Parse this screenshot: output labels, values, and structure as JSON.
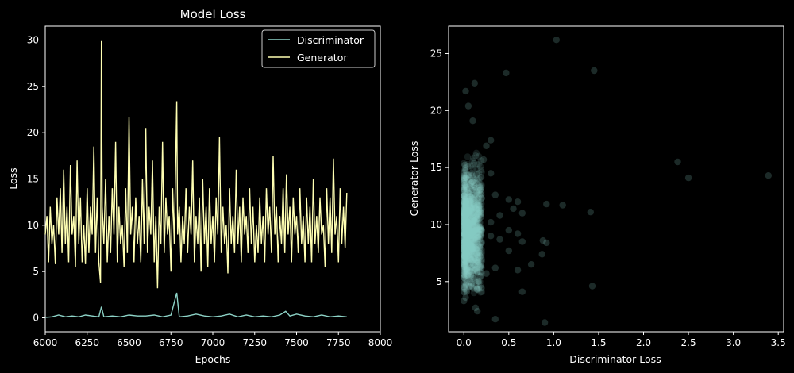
{
  "chart_data": [
    {
      "type": "line",
      "title": "Model Loss",
      "xlabel": "Epochs",
      "ylabel": "Loss",
      "xlim": [
        6000,
        8000
      ],
      "ylim": [
        -1.5,
        31.5
      ],
      "x_ticks": [
        6000,
        6250,
        6500,
        6750,
        7000,
        7250,
        7500,
        7750,
        8000
      ],
      "y_ticks": [
        0,
        5,
        10,
        15,
        20,
        25,
        30
      ],
      "legend_position": "top-right",
      "grid": false,
      "series": [
        {
          "name": "Discriminator",
          "color": "#8dd3c7",
          "points": [
            [
              6000,
              0.05
            ],
            [
              6040,
              0.1
            ],
            [
              6080,
              0.3
            ],
            [
              6120,
              0.1
            ],
            [
              6160,
              0.2
            ],
            [
              6200,
              0.1
            ],
            [
              6240,
              0.3
            ],
            [
              6280,
              0.2
            ],
            [
              6320,
              0.1
            ],
            [
              6335,
              1.2
            ],
            [
              6350,
              0.1
            ],
            [
              6400,
              0.2
            ],
            [
              6450,
              0.1
            ],
            [
              6500,
              0.3
            ],
            [
              6550,
              0.2
            ],
            [
              6600,
              0.2
            ],
            [
              6650,
              0.3
            ],
            [
              6700,
              0.1
            ],
            [
              6750,
              0.3
            ],
            [
              6785,
              2.7
            ],
            [
              6800,
              0.1
            ],
            [
              6850,
              0.2
            ],
            [
              6900,
              0.4
            ],
            [
              6950,
              0.2
            ],
            [
              7000,
              0.1
            ],
            [
              7050,
              0.2
            ],
            [
              7100,
              0.4
            ],
            [
              7150,
              0.1
            ],
            [
              7200,
              0.3
            ],
            [
              7250,
              0.1
            ],
            [
              7300,
              0.2
            ],
            [
              7350,
              0.1
            ],
            [
              7400,
              0.3
            ],
            [
              7435,
              0.7
            ],
            [
              7460,
              0.2
            ],
            [
              7500,
              0.4
            ],
            [
              7550,
              0.2
            ],
            [
              7600,
              0.1
            ],
            [
              7650,
              0.3
            ],
            [
              7700,
              0.1
            ],
            [
              7750,
              0.2
            ],
            [
              7800,
              0.1
            ]
          ]
        },
        {
          "name": "Generator",
          "color": "#ffffb3",
          "points": [
            [
              6000,
              9
            ],
            [
              6010,
              11
            ],
            [
              6020,
              6
            ],
            [
              6030,
              12
            ],
            [
              6040,
              8
            ],
            [
              6050,
              10
            ],
            [
              6060,
              5.8
            ],
            [
              6070,
              13
            ],
            [
              6080,
              9
            ],
            [
              6090,
              14
            ],
            [
              6100,
              7
            ],
            [
              6110,
              16
            ],
            [
              6120,
              8
            ],
            [
              6130,
              12
            ],
            [
              6140,
              6
            ],
            [
              6150,
              16.5
            ],
            [
              6160,
              9
            ],
            [
              6170,
              11
            ],
            [
              6180,
              5.5
            ],
            [
              6190,
              17
            ],
            [
              6200,
              8
            ],
            [
              6210,
              13
            ],
            [
              6220,
              6
            ],
            [
              6230,
              10
            ],
            [
              6240,
              5.8
            ],
            [
              6250,
              14
            ],
            [
              6260,
              7
            ],
            [
              6270,
              12
            ],
            [
              6280,
              9
            ],
            [
              6290,
              18.5
            ],
            [
              6300,
              7
            ],
            [
              6310,
              13
            ],
            [
              6320,
              6
            ],
            [
              6330,
              3.8
            ],
            [
              6335,
              29.9
            ],
            [
              6340,
              12
            ],
            [
              6350,
              8
            ],
            [
              6360,
              15
            ],
            [
              6370,
              6
            ],
            [
              6380,
              11
            ],
            [
              6390,
              7
            ],
            [
              6400,
              14
            ],
            [
              6410,
              9
            ],
            [
              6420,
              19
            ],
            [
              6430,
              6
            ],
            [
              6440,
              12
            ],
            [
              6450,
              8
            ],
            [
              6460,
              10
            ],
            [
              6470,
              5.5
            ],
            [
              6480,
              14
            ],
            [
              6490,
              7
            ],
            [
              6500,
              21.7
            ],
            [
              6510,
              9
            ],
            [
              6520,
              12
            ],
            [
              6530,
              6
            ],
            [
              6540,
              13
            ],
            [
              6550,
              8
            ],
            [
              6560,
              11
            ],
            [
              6570,
              6
            ],
            [
              6580,
              15
            ],
            [
              6590,
              8
            ],
            [
              6600,
              20.5
            ],
            [
              6610,
              7
            ],
            [
              6620,
              12
            ],
            [
              6630,
              9
            ],
            [
              6640,
              17
            ],
            [
              6650,
              6
            ],
            [
              6660,
              11
            ],
            [
              6670,
              3.2
            ],
            [
              6680,
              12
            ],
            [
              6690,
              8
            ],
            [
              6700,
              19
            ],
            [
              6710,
              7
            ],
            [
              6720,
              13
            ],
            [
              6730,
              9
            ],
            [
              6740,
              11
            ],
            [
              6750,
              5
            ],
            [
              6760,
              14
            ],
            [
              6770,
              8
            ],
            [
              6785,
              23.4
            ],
            [
              6790,
              9
            ],
            [
              6800,
              12
            ],
            [
              6810,
              6
            ],
            [
              6820,
              11
            ],
            [
              6830,
              8
            ],
            [
              6840,
              14
            ],
            [
              6850,
              7
            ],
            [
              6860,
              12
            ],
            [
              6870,
              9
            ],
            [
              6880,
              17
            ],
            [
              6890,
              6
            ],
            [
              6900,
              11
            ],
            [
              6910,
              8
            ],
            [
              6920,
              13
            ],
            [
              6930,
              5
            ],
            [
              6940,
              15
            ],
            [
              6950,
              8
            ],
            [
              6960,
              12
            ],
            [
              6970,
              5.5
            ],
            [
              6980,
              14
            ],
            [
              6990,
              8
            ],
            [
              7000,
              11
            ],
            [
              7010,
              6
            ],
            [
              7020,
              13
            ],
            [
              7030,
              9
            ],
            [
              7040,
              19.5
            ],
            [
              7050,
              7
            ],
            [
              7060,
              12
            ],
            [
              7070,
              8
            ],
            [
              7080,
              10
            ],
            [
              7090,
              4.8
            ],
            [
              7100,
              14
            ],
            [
              7110,
              8
            ],
            [
              7120,
              11
            ],
            [
              7130,
              7
            ],
            [
              7140,
              16
            ],
            [
              7150,
              8
            ],
            [
              7160,
              12
            ],
            [
              7170,
              6
            ],
            [
              7180,
              13
            ],
            [
              7190,
              9
            ],
            [
              7200,
              11
            ],
            [
              7210,
              7
            ],
            [
              7220,
              14
            ],
            [
              7230,
              8
            ],
            [
              7240,
              12
            ],
            [
              7250,
              6
            ],
            [
              7260,
              10
            ],
            [
              7270,
              7
            ],
            [
              7280,
              13
            ],
            [
              7290,
              8
            ],
            [
              7300,
              11
            ],
            [
              7310,
              6
            ],
            [
              7320,
              14
            ],
            [
              7330,
              9
            ],
            [
              7340,
              12
            ],
            [
              7350,
              7
            ],
            [
              7360,
              17.5
            ],
            [
              7370,
              9
            ],
            [
              7380,
              12
            ],
            [
              7390,
              6
            ],
            [
              7400,
              11
            ],
            [
              7410,
              8
            ],
            [
              7420,
              14
            ],
            [
              7430,
              7
            ],
            [
              7440,
              15.5
            ],
            [
              7450,
              9
            ],
            [
              7460,
              12
            ],
            [
              7470,
              6
            ],
            [
              7480,
              13
            ],
            [
              7490,
              9
            ],
            [
              7500,
              11
            ],
            [
              7510,
              7
            ],
            [
              7520,
              14
            ],
            [
              7530,
              8
            ],
            [
              7540,
              11
            ],
            [
              7550,
              6
            ],
            [
              7560,
              13
            ],
            [
              7570,
              8
            ],
            [
              7580,
              12
            ],
            [
              7590,
              6
            ],
            [
              7600,
              15
            ],
            [
              7610,
              8
            ],
            [
              7620,
              11
            ],
            [
              7630,
              7
            ],
            [
              7640,
              13
            ],
            [
              7650,
              9
            ],
            [
              7660,
              10
            ],
            [
              7670,
              5.5
            ],
            [
              7680,
              14
            ],
            [
              7690,
              8
            ],
            [
              7700,
              13
            ],
            [
              7710,
              7
            ],
            [
              7720,
              17.2
            ],
            [
              7730,
              9
            ],
            [
              7740,
              11
            ],
            [
              7750,
              6
            ],
            [
              7760,
              14
            ],
            [
              7770,
              8
            ],
            [
              7780,
              12
            ],
            [
              7790,
              7.5
            ],
            [
              7800,
              13.5
            ]
          ]
        }
      ]
    },
    {
      "type": "scatter",
      "title": "",
      "xlabel": "Discriminator Loss",
      "ylabel": "Generator Loss",
      "xlim": [
        -0.17,
        3.56
      ],
      "ylim": [
        0.6,
        27.4
      ],
      "x_ticks": [
        0.0,
        0.5,
        1.0,
        1.5,
        2.0,
        2.5,
        3.0,
        3.5
      ],
      "x_tick_labels": [
        "0.0",
        "0.5",
        "1.0",
        "1.5",
        "2.0",
        "2.5",
        "3.0",
        "3.5"
      ],
      "y_ticks": [
        5,
        10,
        15,
        20,
        25
      ],
      "grid": false,
      "color": "#8dd3c7",
      "cluster": {
        "x_range": [
          0.0,
          0.2
        ],
        "y_range": [
          4.0,
          17.0
        ],
        "y_center": 9.5
      },
      "points": [
        [
          1.03,
          26.2
        ],
        [
          1.45,
          23.5
        ],
        [
          0.47,
          23.3
        ],
        [
          0.12,
          22.4
        ],
        [
          0.02,
          21.7
        ],
        [
          0.05,
          20.4
        ],
        [
          0.1,
          19.1
        ],
        [
          0.3,
          17.4
        ],
        [
          0.25,
          16.9
        ],
        [
          2.38,
          15.5
        ],
        [
          0.22,
          15.7
        ],
        [
          0.3,
          14.5
        ],
        [
          2.5,
          14.1
        ],
        [
          3.39,
          14.3
        ],
        [
          0.18,
          13.0
        ],
        [
          0.35,
          12.6
        ],
        [
          0.5,
          12.2
        ],
        [
          0.6,
          12.0
        ],
        [
          0.92,
          11.8
        ],
        [
          1.1,
          11.7
        ],
        [
          0.55,
          11.4
        ],
        [
          1.41,
          11.1
        ],
        [
          0.65,
          11.0
        ],
        [
          0.4,
          10.8
        ],
        [
          0.3,
          10.2
        ],
        [
          0.5,
          9.5
        ],
        [
          0.6,
          9.2
        ],
        [
          0.3,
          9.0
        ],
        [
          0.88,
          8.6
        ],
        [
          0.92,
          8.4
        ],
        [
          0.4,
          8.7
        ],
        [
          0.65,
          8.5
        ],
        [
          0.5,
          7.7
        ],
        [
          0.87,
          7.4
        ],
        [
          0.75,
          6.5
        ],
        [
          0.6,
          6.0
        ],
        [
          0.35,
          6.2
        ],
        [
          0.25,
          5.7
        ],
        [
          0.16,
          5.0
        ],
        [
          1.43,
          4.6
        ],
        [
          0.65,
          4.1
        ],
        [
          0.13,
          2.7
        ],
        [
          0.15,
          2.4
        ],
        [
          0.35,
          1.7
        ],
        [
          0.9,
          1.4
        ],
        [
          0.0,
          3.3
        ],
        [
          0.02,
          3.6
        ]
      ]
    }
  ]
}
